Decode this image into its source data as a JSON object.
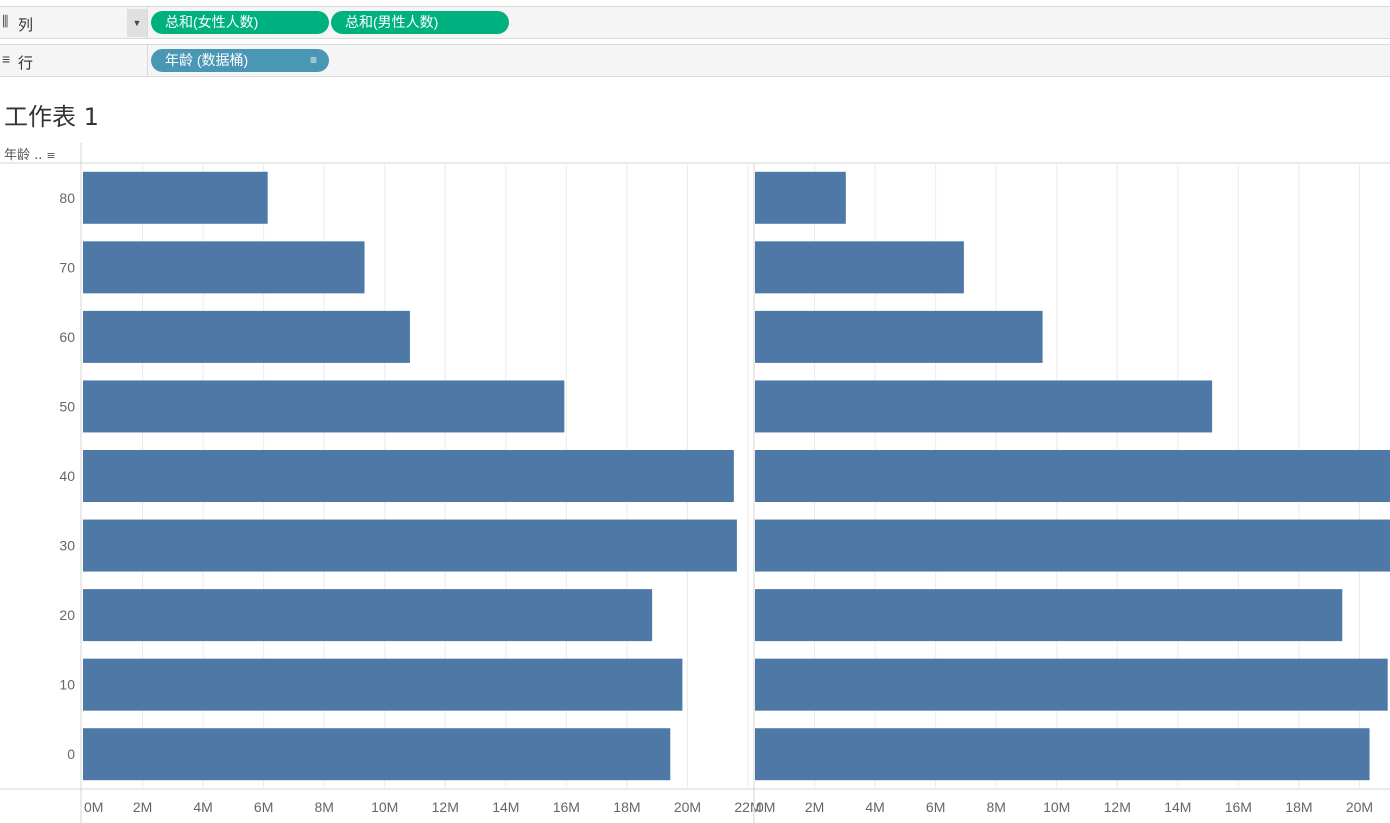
{
  "shelves": {
    "columns": {
      "icon": "columns-icon",
      "label": "列",
      "dropdown_icon": "caret-down-icon",
      "pills": [
        {
          "label": "总和(女性人数)",
          "color": "#00b180"
        },
        {
          "label": "总和(男性人数)",
          "color": "#00b180"
        }
      ]
    },
    "rows": {
      "icon": "rows-icon",
      "label": "行",
      "pills": [
        {
          "label": "年龄 (数据桶)",
          "color": "#4a96b5",
          "sort_icon": "sort-descending-icon"
        }
      ]
    }
  },
  "sheet_title": "工作表 1",
  "row_header": {
    "label": "年龄 ..",
    "sort_icon": "sort-descending-icon"
  },
  "chart_data": {
    "type": "bar",
    "orientation": "horizontal",
    "bar_color": "#4e79a7",
    "categories": [
      "80",
      "70",
      "60",
      "50",
      "40",
      "30",
      "20",
      "10",
      "0"
    ],
    "series": [
      {
        "name": "总和(女性人数)",
        "values": [
          6.1,
          9.3,
          10.8,
          15.9,
          21.5,
          21.6,
          18.8,
          19.8,
          19.4
        ]
      },
      {
        "name": "总和(男性人数)",
        "values": [
          3.0,
          6.9,
          9.5,
          15.1,
          21.0,
          21.6,
          19.4,
          20.9,
          20.3
        ]
      }
    ],
    "unit": "M",
    "xlim": [
      0,
      22
    ],
    "x_ticks": [
      "0M",
      "2M",
      "4M",
      "6M",
      "8M",
      "10M",
      "12M",
      "14M",
      "16M",
      "18M",
      "20M",
      "22M"
    ],
    "grid": "vertical"
  }
}
